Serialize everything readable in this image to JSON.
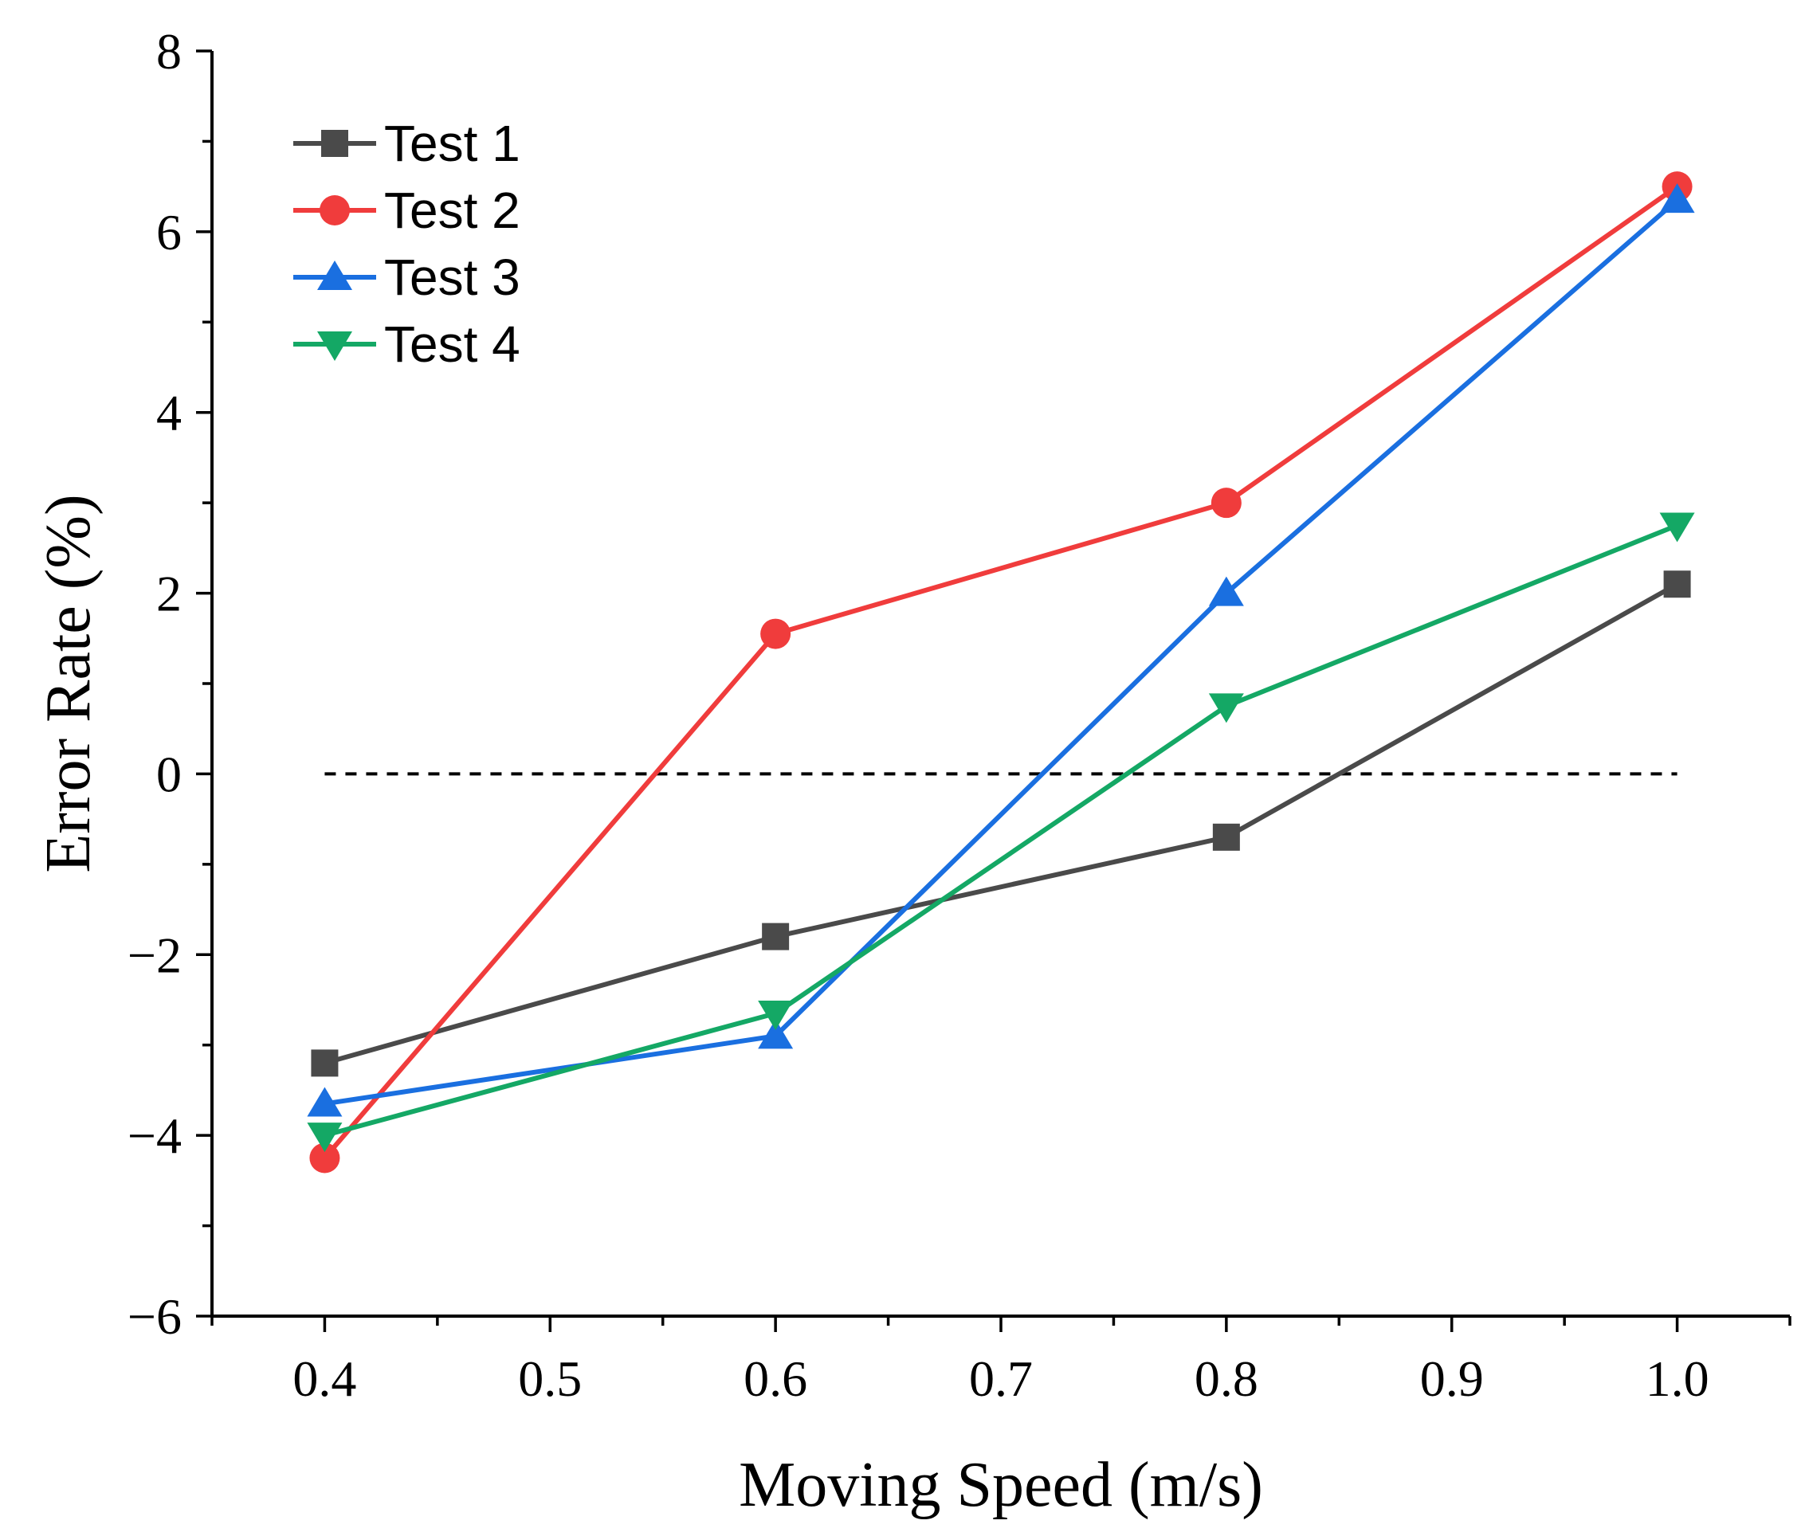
{
  "chart_data": {
    "type": "line",
    "title": "",
    "xlabel": "Moving Speed (m/s)",
    "ylabel": "Error Rate (%)",
    "xlim": [
      0.35,
      1.05
    ],
    "ylim": [
      -6,
      8
    ],
    "x_ticks": [
      "0.4",
      "0.5",
      "0.6",
      "0.7",
      "0.8",
      "0.9",
      "1.0"
    ],
    "x_tick_values": [
      0.4,
      0.5,
      0.6,
      0.7,
      0.8,
      0.9,
      1.0
    ],
    "y_ticks": [
      "−6",
      "−4",
      "−2",
      "0",
      "2",
      "4",
      "6",
      "8"
    ],
    "y_tick_values": [
      -6,
      -4,
      -2,
      0,
      2,
      4,
      6,
      8
    ],
    "grid": false,
    "legend_position": "top-left",
    "x": [
      0.4,
      0.6,
      0.8,
      1.0
    ],
    "series": [
      {
        "name": "Test 1",
        "values": [
          -3.2,
          -1.8,
          -0.7,
          2.1
        ],
        "color": "#4a4a4a",
        "marker": "square"
      },
      {
        "name": "Test 2",
        "values": [
          -4.25,
          1.55,
          3.0,
          6.5
        ],
        "color": "#f03c3c",
        "marker": "circle"
      },
      {
        "name": "Test 3",
        "values": [
          -3.65,
          -2.9,
          2.0,
          6.35
        ],
        "color": "#1a6fe0",
        "marker": "triangle-up"
      },
      {
        "name": "Test 4",
        "values": [
          -4.0,
          -2.65,
          0.75,
          2.75
        ],
        "color": "#14a865",
        "marker": "triangle-down"
      }
    ],
    "reference_line": {
      "y": 0,
      "x_range": [
        0.4,
        1.0
      ],
      "style": "dashed"
    }
  }
}
